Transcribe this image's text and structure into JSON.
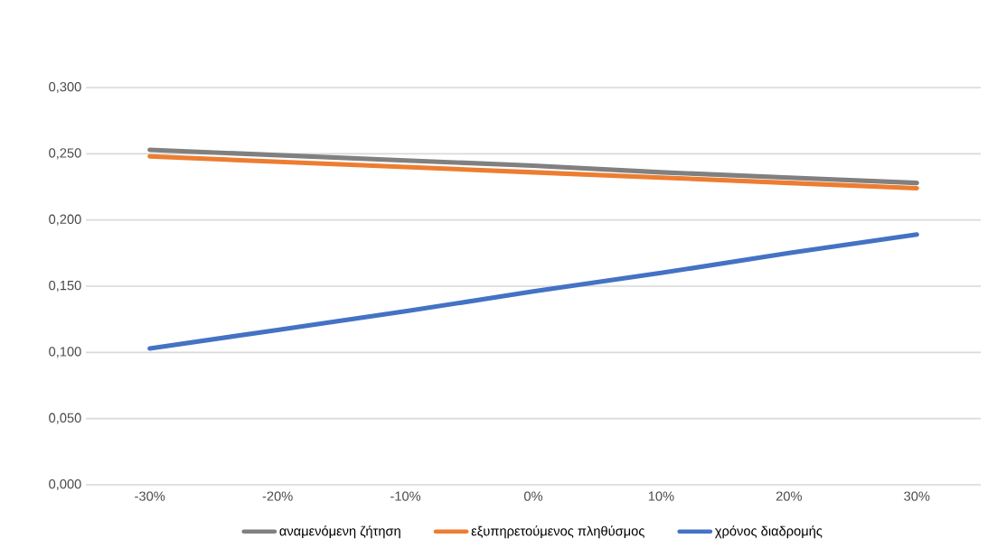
{
  "chart_data": {
    "type": "line",
    "categories": [
      "-30%",
      "-20%",
      "-10%",
      "0%",
      "10%",
      "20%",
      "30%"
    ],
    "series": [
      {
        "name": "αναμενόμενη ζήτηση",
        "color": "#808080",
        "values": [
          0.253,
          0.249,
          0.245,
          0.241,
          0.236,
          0.232,
          0.228
        ]
      },
      {
        "name": "εξυπηρετούμενος πληθύσμος",
        "color": "#ed7d31",
        "values": [
          0.248,
          0.244,
          0.24,
          0.236,
          0.232,
          0.228,
          0.224
        ]
      },
      {
        "name": "χρόνος διαδρομής",
        "color": "#4472c4",
        "values": [
          0.103,
          0.117,
          0.131,
          0.146,
          0.16,
          0.175,
          0.189
        ]
      }
    ],
    "ylim": [
      0,
      0.3
    ],
    "yticks": [
      {
        "value": 0,
        "label": "0,000"
      },
      {
        "value": 0.05,
        "label": "0,050"
      },
      {
        "value": 0.1,
        "label": "0,100"
      },
      {
        "value": 0.15,
        "label": "0,150"
      },
      {
        "value": 0.2,
        "label": "0,200"
      },
      {
        "value": 0.25,
        "label": "0,250"
      },
      {
        "value": 0.3,
        "label": "0,300"
      }
    ],
    "grid": "y",
    "legend": "bottom"
  }
}
